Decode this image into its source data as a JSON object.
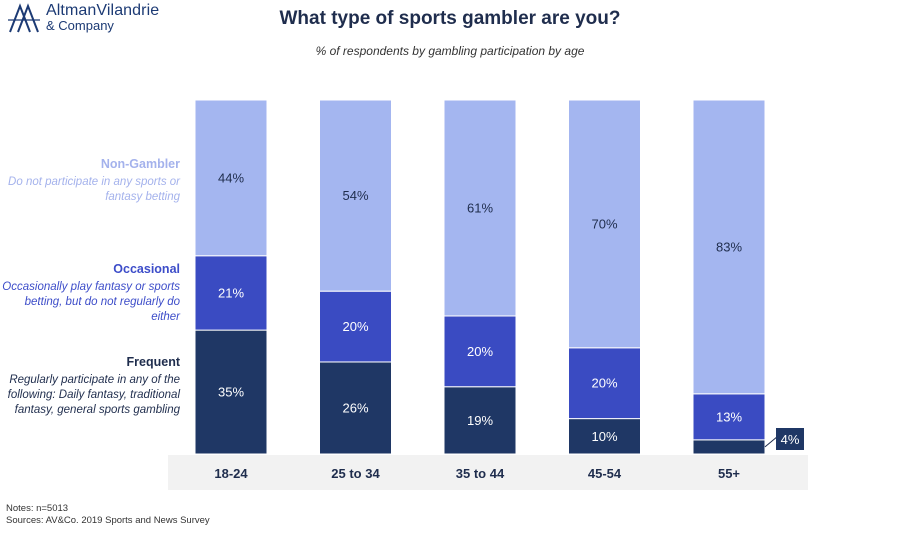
{
  "brand": {
    "line1": "AltmanVilandrie",
    "line2": "& Company",
    "color": "#1c3a74"
  },
  "header": {
    "title": "What type of sports gambler are you?",
    "subtitle": "% of respondents by gambling participation by age"
  },
  "legend": [
    {
      "key": "nongambler",
      "heading": "Non-Gambler",
      "description": "Do not participate in any sports or fantasy betting",
      "heading_color": "#a4b2ec",
      "description_color": "#a4b2ec"
    },
    {
      "key": "occasional",
      "heading": "Occasional",
      "description": "Occasionally play fantasy or sports betting, but do not regularly do either",
      "heading_color": "#3d4dc9",
      "description_color": "#3d4dc9"
    },
    {
      "key": "frequent",
      "heading": "Frequent",
      "description": "Regularly participate in any of the following: Daily fantasy, traditional fantasy, general sports gambling",
      "heading_color": "#1f2d4d",
      "description_color": "#1f2d4d"
    }
  ],
  "chart_data": {
    "type": "bar",
    "stacked": true,
    "categories": [
      "18-24",
      "25 to 34",
      "35 to 44",
      "45-54",
      "55+"
    ],
    "series": [
      {
        "name": "Frequent",
        "values": [
          35,
          26,
          19,
          10,
          4
        ],
        "color": "#1f3765",
        "labels": [
          "35%",
          "26%",
          "19%",
          "10%",
          "4%"
        ]
      },
      {
        "name": "Occasional",
        "values": [
          21,
          20,
          20,
          20,
          13
        ],
        "color": "#3a4bc2",
        "labels": [
          "21%",
          "20%",
          "20%",
          "20%",
          "13%"
        ]
      },
      {
        "name": "Non-Gambler",
        "values": [
          44,
          54,
          61,
          70,
          83
        ],
        "color": "#a4b6f0",
        "labels": [
          "44%",
          "54%",
          "61%",
          "70%",
          "83%"
        ]
      }
    ],
    "ylim": [
      0,
      100
    ],
    "grid": false,
    "x_axis_band_color": "#f2f2f2"
  },
  "footer": {
    "notes": "Notes: n=5013",
    "sources": "Sources: AV&Co. 2019 Sports and News Survey"
  }
}
